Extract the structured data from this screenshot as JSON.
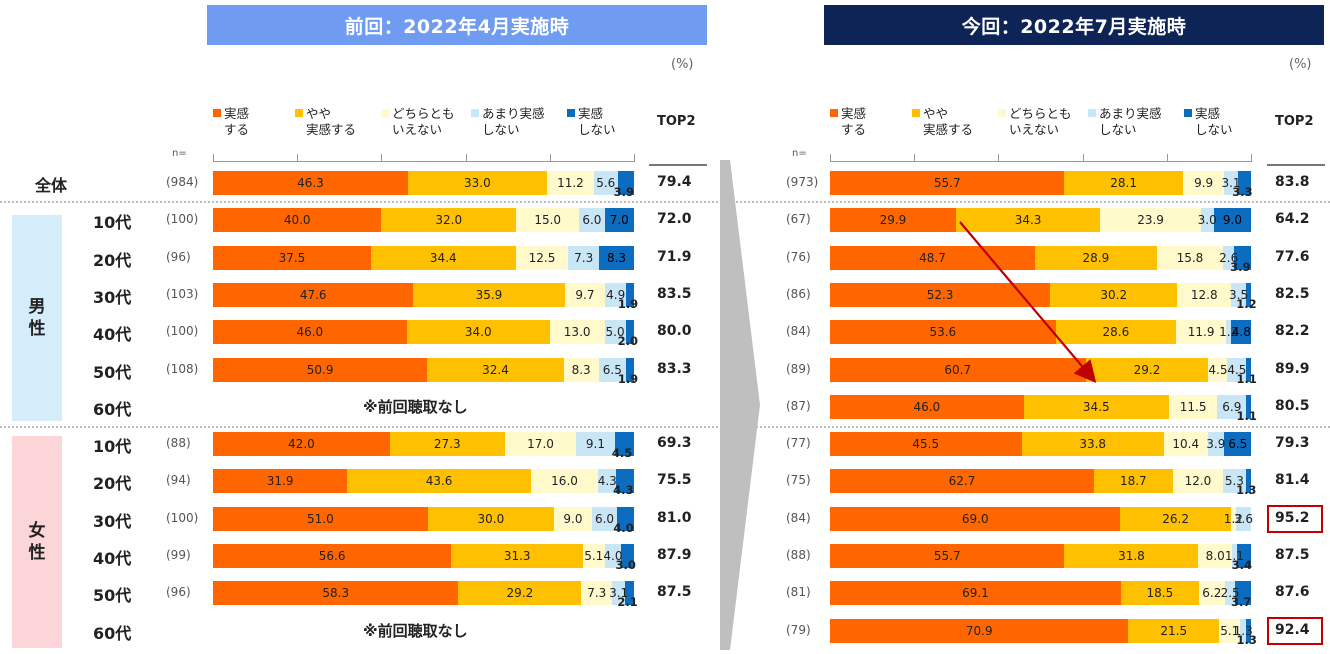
{
  "panels": {
    "prev": {
      "title": "前回：2022年4月実施時",
      "unit": "(%)"
    },
    "curr": {
      "title": "今回：2022年7月実施時",
      "unit": "(%)"
    }
  },
  "legend": [
    {
      "text": [
        "実感",
        "する"
      ],
      "color": "#ff6600"
    },
    {
      "text": [
        "やや",
        "実感する"
      ],
      "color": "#ffc000"
    },
    {
      "text": [
        "どちらとも",
        "いえない"
      ],
      "color": "#fff9cc"
    },
    {
      "text": [
        "あまり実感",
        "しない"
      ],
      "color": "#c9e6f7"
    },
    {
      "text": [
        "実感",
        "しない"
      ],
      "color": "#0b6cc0"
    }
  ],
  "top2_header": "TOP2",
  "n_label": "n=",
  "no_data_label": "※前回聴取なし",
  "groups": {
    "male": "男性",
    "female": "女性"
  },
  "rows": [
    {
      "label": "全体",
      "group": "all",
      "prev_n": "(984)",
      "curr_n": "(973)"
    },
    {
      "label": "10代",
      "group": "male",
      "prev_n": "(100)",
      "curr_n": "(67)"
    },
    {
      "label": "20代",
      "group": "male",
      "prev_n": "(96)",
      "curr_n": "(76)"
    },
    {
      "label": "30代",
      "group": "male",
      "prev_n": "(103)",
      "curr_n": "(86)"
    },
    {
      "label": "40代",
      "group": "male",
      "prev_n": "(100)",
      "curr_n": "(84)"
    },
    {
      "label": "50代",
      "group": "male",
      "prev_n": "(108)",
      "curr_n": "(89)"
    },
    {
      "label": "60代",
      "group": "male",
      "prev_n": "",
      "curr_n": "(87)"
    },
    {
      "label": "10代",
      "group": "female",
      "prev_n": "(88)",
      "curr_n": "(77)"
    },
    {
      "label": "20代",
      "group": "female",
      "prev_n": "(94)",
      "curr_n": "(75)"
    },
    {
      "label": "30代",
      "group": "female",
      "prev_n": "(100)",
      "curr_n": "(84)"
    },
    {
      "label": "40代",
      "group": "female",
      "prev_n": "(99)",
      "curr_n": "(88)"
    },
    {
      "label": "50代",
      "group": "female",
      "prev_n": "(96)",
      "curr_n": "(81)"
    },
    {
      "label": "60代",
      "group": "female",
      "prev_n": "",
      "curr_n": "(79)"
    }
  ],
  "chart_data": [
    {
      "type": "bar",
      "orientation": "horizontal-stacked-100",
      "title": "前回：2022年4月実施時",
      "series_names": [
        "実感する",
        "やや実感する",
        "どちらともいえない",
        "あまり実感しない",
        "実感しない"
      ],
      "rows": [
        {
          "values": [
            46.3,
            33.0,
            11.2,
            5.6,
            3.9
          ],
          "top2": "79.4"
        },
        {
          "values": [
            40.0,
            32.0,
            15.0,
            6.0,
            7.0
          ],
          "top2": "72.0"
        },
        {
          "values": [
            37.5,
            34.4,
            12.5,
            7.3,
            8.3
          ],
          "top2": "71.9"
        },
        {
          "values": [
            47.6,
            35.9,
            9.7,
            4.9,
            1.9
          ],
          "top2": "83.5"
        },
        {
          "values": [
            46.0,
            34.0,
            13.0,
            5.0,
            2.0
          ],
          "top2": "80.0"
        },
        {
          "values": [
            50.9,
            32.4,
            8.3,
            6.5,
            1.9
          ],
          "top2": "83.3"
        },
        null,
        {
          "values": [
            42.0,
            27.3,
            17.0,
            9.1,
            4.5
          ],
          "top2": "69.3"
        },
        {
          "values": [
            31.9,
            43.6,
            16.0,
            4.3,
            4.3
          ],
          "top2": "75.5"
        },
        {
          "values": [
            51.0,
            30.0,
            9.0,
            6.0,
            4.0
          ],
          "top2": "81.0"
        },
        {
          "values": [
            56.6,
            31.3,
            5.1,
            4.0,
            3.0
          ],
          "top2": "87.9"
        },
        {
          "values": [
            58.3,
            29.2,
            7.3,
            3.1,
            2.1
          ],
          "top2": "87.5"
        },
        null
      ]
    },
    {
      "type": "bar",
      "orientation": "horizontal-stacked-100",
      "title": "今回：2022年7月実施時",
      "series_names": [
        "実感する",
        "やや実感する",
        "どちらともいえない",
        "あまり実感しない",
        "実感しない"
      ],
      "rows": [
        {
          "values": [
            55.7,
            28.1,
            9.9,
            3.1,
            3.3
          ],
          "top2": "83.8"
        },
        {
          "values": [
            29.9,
            34.3,
            23.9,
            3.0,
            9.0
          ],
          "top2": "64.2"
        },
        {
          "values": [
            48.7,
            28.9,
            15.8,
            2.6,
            3.9
          ],
          "top2": "77.6"
        },
        {
          "values": [
            52.3,
            30.2,
            12.8,
            3.5,
            1.2
          ],
          "top2": "82.5"
        },
        {
          "values": [
            53.6,
            28.6,
            11.9,
            1.2,
            4.8
          ],
          "top2": "82.2"
        },
        {
          "values": [
            60.7,
            29.2,
            4.5,
            4.5,
            1.1
          ],
          "top2": "89.9"
        },
        {
          "values": [
            46.0,
            34.5,
            11.5,
            6.9,
            1.1
          ],
          "top2": "80.5"
        },
        {
          "values": [
            45.5,
            33.8,
            10.4,
            3.9,
            6.5
          ],
          "top2": "79.3"
        },
        {
          "values": [
            62.7,
            18.7,
            12.0,
            5.3,
            1.3
          ],
          "top2": "81.4"
        },
        {
          "values": [
            69.0,
            26.2,
            1.2,
            3.6,
            0
          ],
          "top2": "95.2",
          "highlight": true
        },
        {
          "values": [
            55.7,
            31.8,
            8.0,
            1.1,
            3.4
          ],
          "top2": "87.5"
        },
        {
          "values": [
            69.1,
            18.5,
            6.2,
            2.5,
            3.7
          ],
          "top2": "87.6"
        },
        {
          "values": [
            70.9,
            21.5,
            5.1,
            1.3,
            1.3
          ],
          "top2": "92.4",
          "highlight": true
        }
      ]
    }
  ]
}
